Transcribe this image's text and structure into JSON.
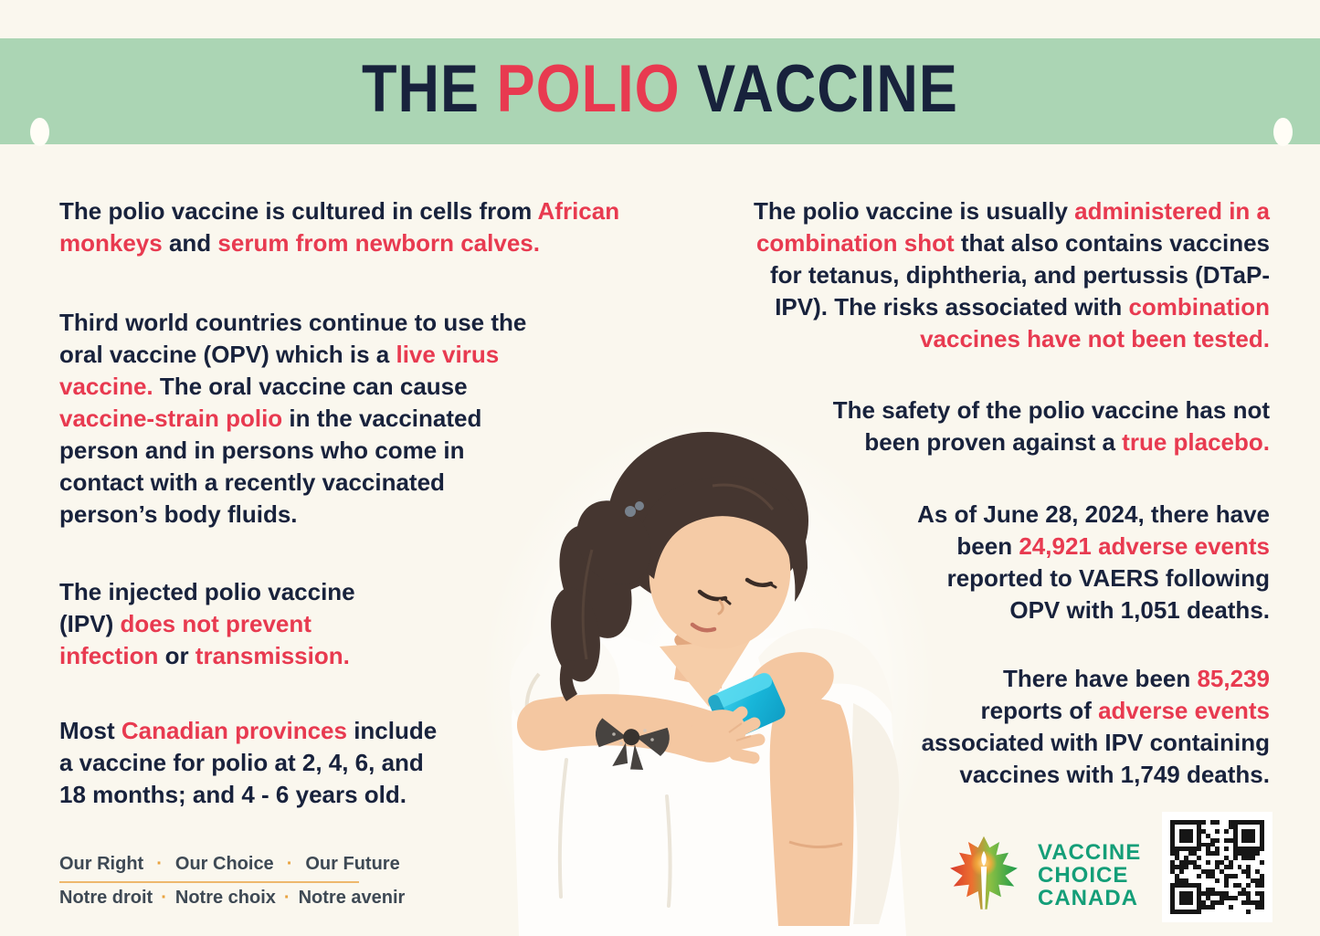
{
  "theme": {
    "background": "#faf7ee",
    "band_green": "#abd5b4",
    "navy": "#18223c",
    "red": "#e83a50",
    "logo_green": "#149e78",
    "footer_text": "#3e4954",
    "footer_accent": "#e9a340",
    "bandage": "#18b7da"
  },
  "header": {
    "title_pre": "THE ",
    "title_highlight": "POLIO",
    "title_post": " VACCINE"
  },
  "left_column": {
    "paragraphs": [
      {
        "segments": [
          {
            "text": "The polio vaccine is cultured in cells from "
          },
          {
            "text": "African\nmonkeys",
            "red": true
          },
          {
            "text": " and "
          },
          {
            "text": "serum from newborn calves.",
            "red": true
          }
        ]
      },
      {
        "segments": [
          {
            "text": "Third world countries continue to use the\noral vaccine (OPV) which is a "
          },
          {
            "text": "live virus\nvaccine.",
            "red": true
          },
          {
            "text": " The oral vaccine can cause\n"
          },
          {
            "text": "vaccine-strain polio",
            "red": true
          },
          {
            "text": " in the vaccinated\nperson and in persons who come in\ncontact with a recently vaccinated\nperson’s body fluids."
          }
        ]
      },
      {
        "segments": [
          {
            "text": "The injected polio vaccine\n(IPV) "
          },
          {
            "text": "does not prevent\ninfection",
            "red": true
          },
          {
            "text": " or "
          },
          {
            "text": "transmission.",
            "red": true
          }
        ]
      },
      {
        "segments": [
          {
            "text": "Most "
          },
          {
            "text": "Canadian provinces",
            "red": true
          },
          {
            "text": " include\na vaccine for polio at 2, 4, 6, and\n18 months; and 4 - 6 years old."
          }
        ]
      }
    ]
  },
  "right_column": {
    "paragraphs": [
      {
        "segments": [
          {
            "text": "The polio vaccine is usually "
          },
          {
            "text": "administered in a\ncombination shot",
            "red": true
          },
          {
            "text": " that also contains vaccines\nfor tetanus, diphtheria, and pertussis (DTaP-\nIPV). The risks associated with "
          },
          {
            "text": "combination\nvaccines have not been tested.",
            "red": true
          }
        ]
      },
      {
        "segments": [
          {
            "text": "The safety of the polio vaccine has not\nbeen proven against a "
          },
          {
            "text": "true placebo.",
            "red": true
          }
        ]
      },
      {
        "segments": [
          {
            "text": "As of June 28, 2024, there have\nbeen "
          },
          {
            "text": "24,921 adverse events",
            "red": true
          },
          {
            "text": "\nreported to VAERS following\nOPV with 1,051 deaths."
          }
        ]
      },
      {
        "segments": [
          {
            "text": "There have been "
          },
          {
            "text": "85,239",
            "red": true
          },
          {
            "text": "\nreports of "
          },
          {
            "text": "adverse events",
            "red": true
          },
          {
            "text": "\nassociated with IPV containing\nvaccines with 1,749 deaths."
          }
        ]
      }
    ]
  },
  "footer": {
    "separator": "·",
    "motto_en": [
      "Our Right",
      "Our Choice",
      "Our Future"
    ],
    "motto_fr": [
      "Notre droit",
      "Notre choix",
      "Notre avenir"
    ]
  },
  "logo": {
    "name_lines": [
      "VACCINE",
      "CHOICE",
      "CANADA"
    ]
  },
  "illustration": {
    "alt": "Young girl with dark pigtail looking down at a teal bandage on her upper arm"
  }
}
